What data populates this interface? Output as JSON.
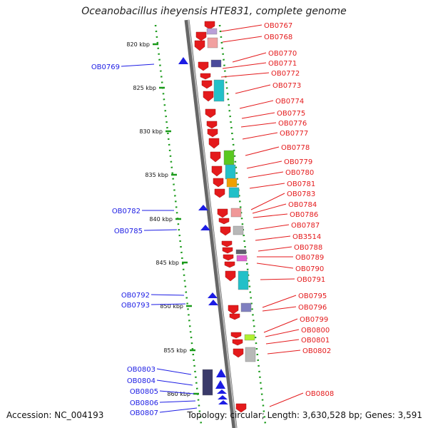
{
  "header": {
    "title": "Oceanobacillus iheyensis HTE831, complete genome"
  },
  "footer": {
    "accession": "Accession: NC_004193",
    "summary": "Topology: circular; Length: 3,630,528 bp; Genes: 3,591"
  },
  "colors": {
    "forward": "#e41a1c",
    "reverse": "#1c1ce4",
    "backbone": "#888888",
    "ticks": "#1a9a1a"
  },
  "scale_labels": [
    "820 kbp",
    "825 kbp",
    "830 kbp",
    "835 kbp",
    "840 kbp",
    "845 kbp",
    "850 kbp",
    "855 kbp",
    "860 kbp"
  ],
  "forward_genes": [
    "OB0767",
    "OB0768",
    "OB0770",
    "OB0771",
    "OB0772",
    "OB0773",
    "OB0774",
    "OB0775",
    "OB0776",
    "OB0777",
    "OB0778",
    "OB0779",
    "OB0780",
    "OB0781",
    "OB0783",
    "OB0784",
    "OB0786",
    "OB0787",
    "OB3514",
    "OB0788",
    "OB0789",
    "OB0790",
    "OB0791",
    "OB0795",
    "OB0796",
    "OB0799",
    "OB0800",
    "OB0801",
    "OB0802",
    "OB0808"
  ],
  "reverse_genes": [
    "OB0769",
    "OB0782",
    "OB0785",
    "OB0792",
    "OB0793",
    "OB0803",
    "OB0804",
    "OB0805",
    "OB0806",
    "OB0807"
  ]
}
